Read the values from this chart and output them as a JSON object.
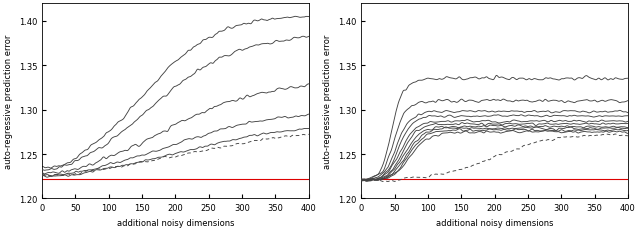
{
  "xlim": [
    0,
    400
  ],
  "ylim": [
    1.2,
    1.42
  ],
  "yticks": [
    1.2,
    1.25,
    1.3,
    1.35,
    1.4
  ],
  "xticks": [
    0,
    50,
    100,
    150,
    200,
    250,
    300,
    350,
    400
  ],
  "xlabel": "additional noisy dimensions",
  "ylabel": "auto-regressive prediction error",
  "red_line_y": 1.222,
  "background": "#ffffff",
  "line_color": "#444444",
  "dashed_color": "#444444",
  "red_color": "#dd0000",
  "left_curves": [
    {
      "final": 1.408,
      "midpoint": 150,
      "steepness": 0.018,
      "noise": 0.003
    },
    {
      "final": 1.385,
      "midpoint": 165,
      "steepness": 0.016,
      "noise": 0.003
    },
    {
      "final": 1.332,
      "midpoint": 185,
      "steepness": 0.014,
      "noise": 0.003
    },
    {
      "final": 1.3,
      "midpoint": 200,
      "steepness": 0.013,
      "noise": 0.002
    },
    {
      "final": 1.285,
      "midpoint": 215,
      "steepness": 0.012,
      "noise": 0.002
    }
  ],
  "left_dashed": {
    "final": 1.282,
    "midpoint": 230,
    "steepness": 0.01,
    "noise": 0.002
  },
  "right_curves": [
    {
      "final": 1.335,
      "midpoint": 45,
      "steepness": 0.12,
      "noise": 0.003
    },
    {
      "final": 1.31,
      "midpoint": 48,
      "steepness": 0.11,
      "noise": 0.003
    },
    {
      "final": 1.298,
      "midpoint": 52,
      "steepness": 0.1,
      "noise": 0.002
    },
    {
      "final": 1.293,
      "midpoint": 55,
      "steepness": 0.1,
      "noise": 0.002
    },
    {
      "final": 1.287,
      "midpoint": 58,
      "steepness": 0.09,
      "noise": 0.002
    },
    {
      "final": 1.284,
      "midpoint": 61,
      "steepness": 0.09,
      "noise": 0.002
    },
    {
      "final": 1.281,
      "midpoint": 64,
      "steepness": 0.08,
      "noise": 0.002
    },
    {
      "final": 1.279,
      "midpoint": 67,
      "steepness": 0.08,
      "noise": 0.002
    },
    {
      "final": 1.277,
      "midpoint": 70,
      "steepness": 0.08,
      "noise": 0.002
    },
    {
      "final": 1.275,
      "midpoint": 73,
      "steepness": 0.07,
      "noise": 0.002
    }
  ],
  "right_dashed": {
    "final": 1.272,
    "midpoint": 200,
    "steepness": 0.025,
    "noise": 0.002
  }
}
